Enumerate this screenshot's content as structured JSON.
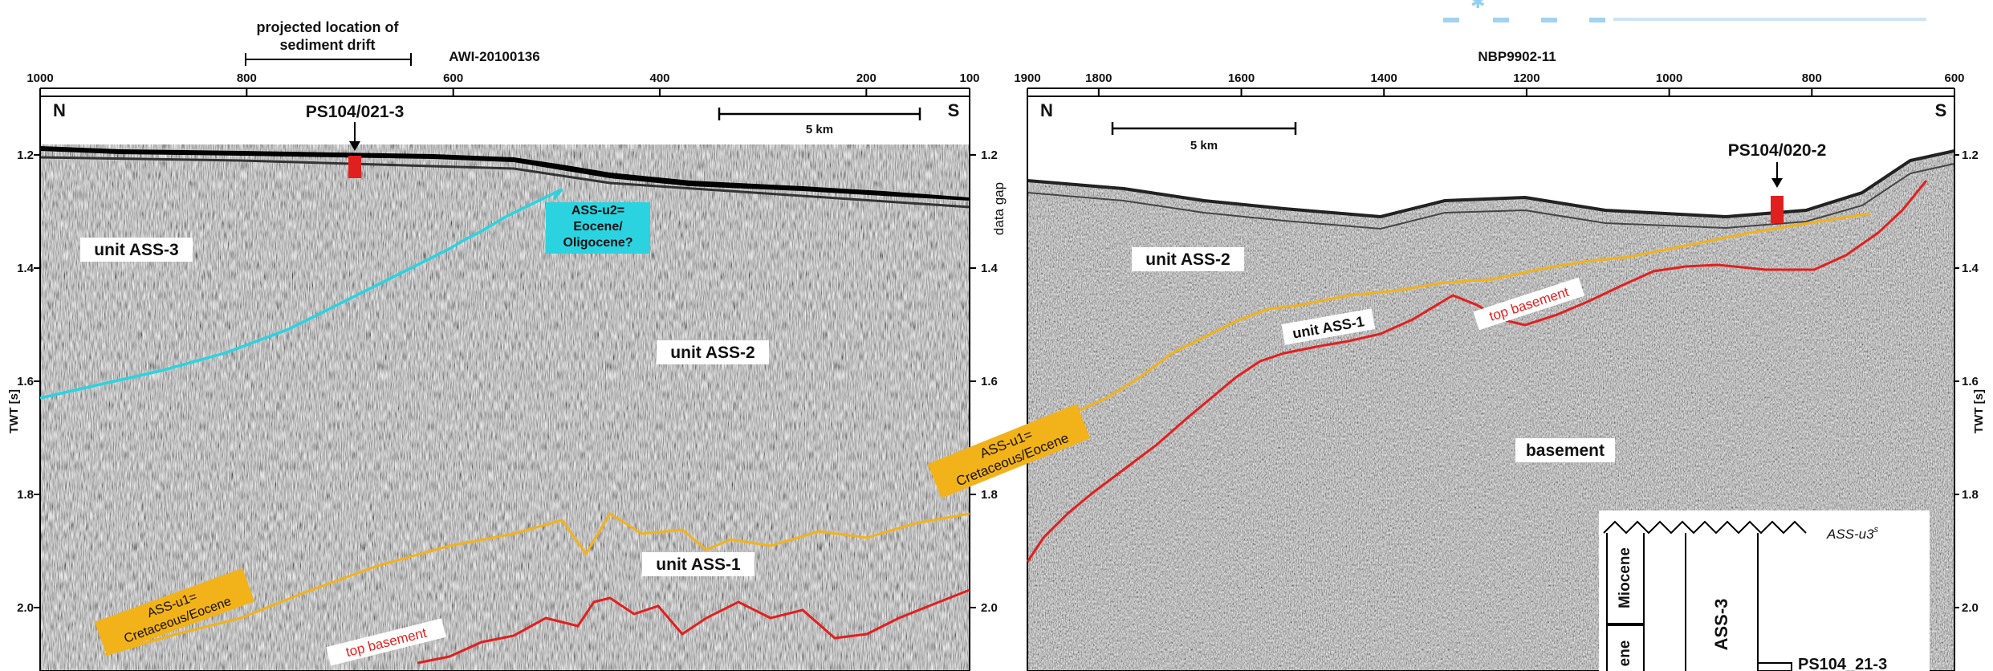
{
  "panel_left": {
    "profile_name": "AWI-20100136",
    "drift_label": [
      "projected location of",
      "sediment drift"
    ],
    "cdp_ticks": [
      "1000",
      "800",
      "600",
      "400",
      "200",
      "100"
    ],
    "y_ticks": [
      "1.2",
      "1.4",
      "1.6",
      "1.8",
      "2.0"
    ],
    "y_axis_label": "TWT [s]",
    "north_label": "N",
    "south_label": "S",
    "scale_label": "5 km",
    "site_label": "PS104/021-3",
    "units": [
      {
        "name": "unit ASS-3"
      },
      {
        "name": "unit ASS-2"
      },
      {
        "name": "unit ASS-1"
      }
    ],
    "horizon_u2": [
      "ASS-u2=",
      "Eocene/",
      "Oligocene?"
    ],
    "horizon_u1": [
      "ASS-u1=",
      "Cretaceous/Eocene"
    ],
    "top_basement_label": "top basement"
  },
  "panel_right": {
    "profile_name": "NBP9902-11",
    "cdp_ticks": [
      "1900",
      "1800",
      "1600",
      "1400",
      "1200",
      "1000",
      "800",
      "600"
    ],
    "y_ticks": [
      "1.2",
      "1.4",
      "1.6",
      "1.8",
      "2.0"
    ],
    "data_gap_label": "data gap",
    "y_axis_label": "TWT [s]",
    "north_label": "N",
    "south_label": "S",
    "scale_label": "5 km",
    "site_label": "PS104/020-2",
    "units": [
      {
        "name": "unit ASS-2"
      },
      {
        "name": "unit ASS-1"
      },
      {
        "name": "basement"
      }
    ],
    "horizon_u1": [
      "ASS-u1=",
      "Cretaceous/Eocene"
    ],
    "top_basement_label": "top basement"
  },
  "strat_column": {
    "top_horizon": "ASS-u3",
    "top_horizon_sup": "s",
    "epochs": [
      "Miocene",
      "ene"
    ],
    "unit": "ASS-3",
    "core_label": "PS104_21-3"
  },
  "colors": {
    "horizon_u2": "#2bd3e0",
    "horizon_u1": "#f2b21a",
    "top_basement": "#e0201e",
    "site_marker": "#e0201e",
    "label_u2_bg": "#2bd3e0",
    "label_u1_bg": "#f2b21a"
  }
}
